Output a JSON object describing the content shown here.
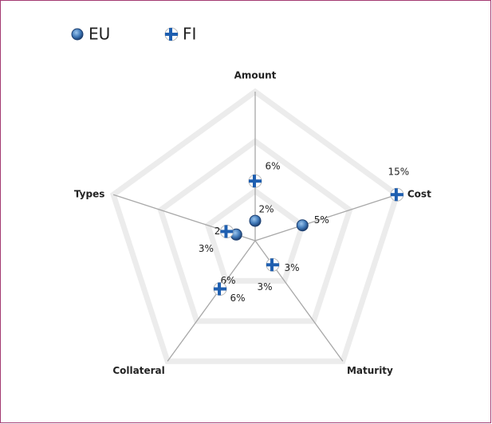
{
  "chart_data": {
    "type": "radar",
    "categories": [
      "Amount",
      "Cost",
      "Maturity",
      "Collateral",
      "Types"
    ],
    "series": [
      {
        "name": "EU",
        "color": "#3f78b8",
        "values": [
          2,
          5,
          3,
          6,
          2
        ],
        "value_labels": [
          "2%",
          "5%",
          "3%",
          "6%",
          "2%"
        ]
      },
      {
        "name": "FI",
        "color": "#1f5fb0",
        "values": [
          6,
          15,
          3,
          6,
          3
        ],
        "value_labels": [
          "6%",
          "15%",
          "3%",
          "6%",
          "3%"
        ]
      }
    ],
    "ylim": [
      0,
      15
    ],
    "yticks": [
      0,
      5,
      10,
      15
    ],
    "grid": true,
    "legend": "top-left"
  }
}
